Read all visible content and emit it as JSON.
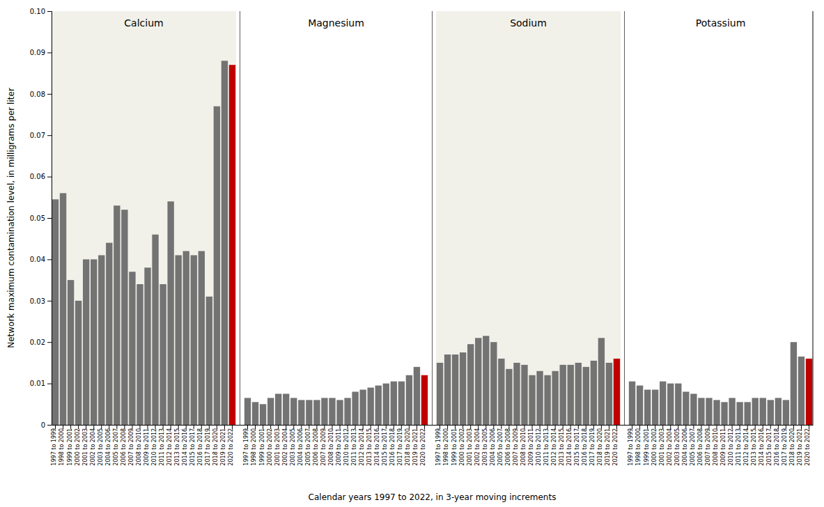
{
  "chart_data": {
    "type": "bar",
    "x_label": "Calendar years 1997 to 2022, in 3-year moving increments",
    "y_label": "Network maximum contamination level, in milligrams per liter",
    "categories": [
      "1997 to 1999",
      "1998 to 2000",
      "1999 to 2001",
      "2000 to 2002",
      "2001 to 2003",
      "2002 to 2004",
      "2003 to 2005",
      "2004 to 2006",
      "2005 to 2007",
      "2006 to 2008",
      "2007 to 2009",
      "2008 to 2010",
      "2009 to 2011",
      "2010 to 2012",
      "2011 to 2013",
      "2012 to 2014",
      "2013 to 2015",
      "2014 to 2016",
      "2015 to 2017",
      "2016 to 2018",
      "2017 to 2019",
      "2018 to 2020",
      "2019 to 2021",
      "2020 to 2022"
    ],
    "series": [
      {
        "name": "Calcium",
        "values": [
          0.0545,
          0.056,
          0.035,
          0.03,
          0.04,
          0.04,
          0.041,
          0.044,
          0.053,
          0.052,
          0.037,
          0.034,
          0.038,
          0.046,
          0.034,
          0.054,
          0.041,
          0.042,
          0.041,
          0.042,
          0.031,
          0.077,
          0.088,
          0.087
        ],
        "colors": [
          "#737373",
          "#737373",
          "#737373",
          "#737373",
          "#737373",
          "#737373",
          "#737373",
          "#737373",
          "#737373",
          "#737373",
          "#737373",
          "#737373",
          "#737373",
          "#737373",
          "#737373",
          "#737373",
          "#737373",
          "#737373",
          "#737373",
          "#737373",
          "#737373",
          "#737373",
          "#737373",
          "#c00000"
        ]
      },
      {
        "name": "Magnesium",
        "values": [
          0.0065,
          0.0055,
          0.005,
          0.0065,
          0.0075,
          0.0075,
          0.0065,
          0.006,
          0.006,
          0.006,
          0.0065,
          0.0065,
          0.006,
          0.0065,
          0.008,
          0.0085,
          0.009,
          0.0095,
          0.01,
          0.0105,
          0.0105,
          0.012,
          0.014,
          0.012
        ],
        "colors": [
          "#737373",
          "#737373",
          "#737373",
          "#737373",
          "#737373",
          "#737373",
          "#737373",
          "#737373",
          "#737373",
          "#737373",
          "#737373",
          "#737373",
          "#737373",
          "#737373",
          "#737373",
          "#737373",
          "#737373",
          "#737373",
          "#737373",
          "#737373",
          "#737373",
          "#737373",
          "#737373",
          "#c00000"
        ]
      },
      {
        "name": "Sodium",
        "values": [
          0.015,
          0.017,
          0.017,
          0.0175,
          0.0195,
          0.021,
          0.0215,
          0.02,
          0.016,
          0.0135,
          0.015,
          0.0145,
          0.012,
          0.013,
          0.012,
          0.013,
          0.0145,
          0.0145,
          0.015,
          0.014,
          0.0155,
          0.021,
          0.015,
          0.016
        ],
        "colors": [
          "#737373",
          "#737373",
          "#737373",
          "#737373",
          "#737373",
          "#737373",
          "#737373",
          "#737373",
          "#737373",
          "#737373",
          "#737373",
          "#737373",
          "#737373",
          "#737373",
          "#737373",
          "#737373",
          "#737373",
          "#737373",
          "#737373",
          "#737373",
          "#737373",
          "#737373",
          "#737373",
          "#c00000"
        ]
      },
      {
        "name": "Potassium",
        "values": [
          0.0105,
          0.0095,
          0.0085,
          0.0085,
          0.0105,
          0.01,
          0.01,
          0.008,
          0.0075,
          0.0065,
          0.0065,
          0.006,
          0.0055,
          0.0065,
          0.0055,
          0.0055,
          0.0065,
          0.0065,
          0.006,
          0.0065,
          0.006,
          0.02,
          0.0165,
          0.016
        ],
        "colors": [
          "#737373",
          "#737373",
          "#737373",
          "#737373",
          "#737373",
          "#737373",
          "#737373",
          "#737373",
          "#737373",
          "#737373",
          "#737373",
          "#737373",
          "#737373",
          "#737373",
          "#737373",
          "#737373",
          "#737373",
          "#737373",
          "#737373",
          "#737373",
          "#737373",
          "#737373",
          "#737373",
          "#c00000"
        ]
      }
    ],
    "ylim": [
      0,
      0.1
    ],
    "yticks": [
      0,
      0.01,
      0.02,
      0.03,
      0.04,
      0.05,
      0.06,
      0.07,
      0.08,
      0.09,
      {
        "value": 0.1,
        "label": "0.10"
      }
    ],
    "grid": false
  }
}
